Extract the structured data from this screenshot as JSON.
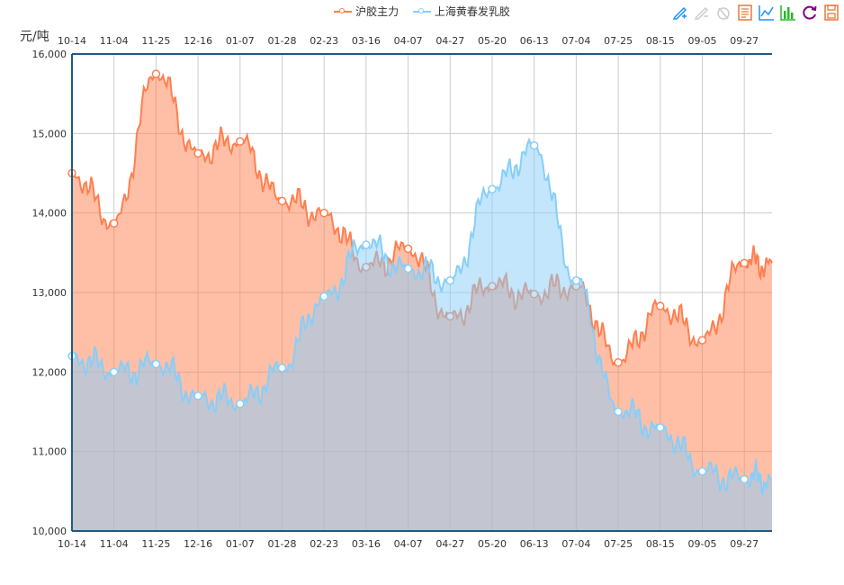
{
  "legend": [
    {
      "name": "沪胶主力",
      "color": "#ff7f50"
    },
    {
      "name": "上海黄春发乳胶",
      "color": "#87cefa"
    }
  ],
  "toolbox": [
    "mark-icon",
    "mark-undo-icon",
    "mark-clear-icon",
    "data-view-icon",
    "line-chart-icon",
    "bar-chart-icon",
    "restore-icon",
    "save-image-icon"
  ],
  "colors": {
    "series1": "#ff7f50",
    "series2": "#87cefa",
    "axis": "#1e5a87",
    "grid": "#cccccc"
  },
  "unit_label": "元/吨",
  "chart_data": {
    "type": "area",
    "categories": [
      "10-14",
      "11-04",
      "11-25",
      "12-16",
      "01-07",
      "01-28",
      "02-23",
      "03-16",
      "04-07",
      "04-27",
      "05-20",
      "06-13",
      "07-04",
      "07-25",
      "08-15",
      "09-05",
      "09-27"
    ],
    "ylim": [
      10000,
      16000
    ],
    "yticks": [
      "10,000",
      "11,000",
      "12,000",
      "13,000",
      "14,000",
      "15,000",
      "16,000"
    ],
    "yticks_values": [
      10000,
      11000,
      12000,
      13000,
      14000,
      15000,
      16000
    ],
    "grid": true,
    "legend_position": "top-center",
    "series": [
      {
        "name": "沪胶主力",
        "values": [
          14500,
          13870,
          15750,
          14750,
          14900,
          14150,
          14000,
          13320,
          13550,
          12700,
          13080,
          12980,
          13080,
          12120,
          12830,
          12400,
          13370
        ]
      },
      {
        "name": "上海黄春发乳胶",
        "values": [
          12200,
          12000,
          12100,
          11700,
          11600,
          12050,
          12950,
          13600,
          13300,
          13150,
          14300,
          14850,
          13150,
          11500,
          11300,
          10750,
          10650
        ]
      }
    ]
  }
}
